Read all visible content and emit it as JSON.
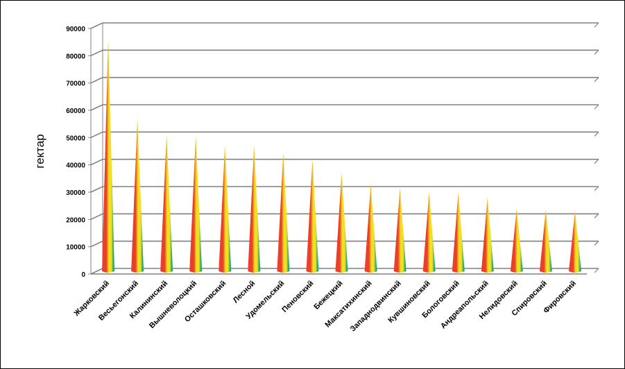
{
  "chart_data": {
    "type": "bar",
    "bar_shape": "cone",
    "title": "",
    "xlabel": "",
    "ylabel": "гектар",
    "ylim": [
      0,
      90000
    ],
    "yticks": [
      "0",
      "10000",
      "20000",
      "30000",
      "40000",
      "50000",
      "60000",
      "70000",
      "80000",
      "90000"
    ],
    "grid": true,
    "legend": "none",
    "categories": [
      "Жарковский",
      "Весьегонский",
      "Калининский",
      "Вышневолоцкий",
      "Осташковский",
      "Лесной",
      "Удомельский",
      "Пеновский",
      "Бежецкий",
      "Максатихинский",
      "Западнодвинский",
      "Кувшиновский",
      "Бологовский",
      "Андреапольский",
      "Нелидовский",
      "Спировский",
      "Фировский"
    ],
    "values": [
      85000,
      56000,
      50000,
      49500,
      46000,
      46000,
      43500,
      41000,
      36000,
      32000,
      30500,
      29000,
      29000,
      27000,
      23000,
      22500,
      22000
    ],
    "colors": {
      "cone_base": "#e8402a",
      "cone_mid": "#f0e020",
      "cone_top": "#1aa66a",
      "grid": "#808080",
      "axis": "#808080"
    }
  }
}
